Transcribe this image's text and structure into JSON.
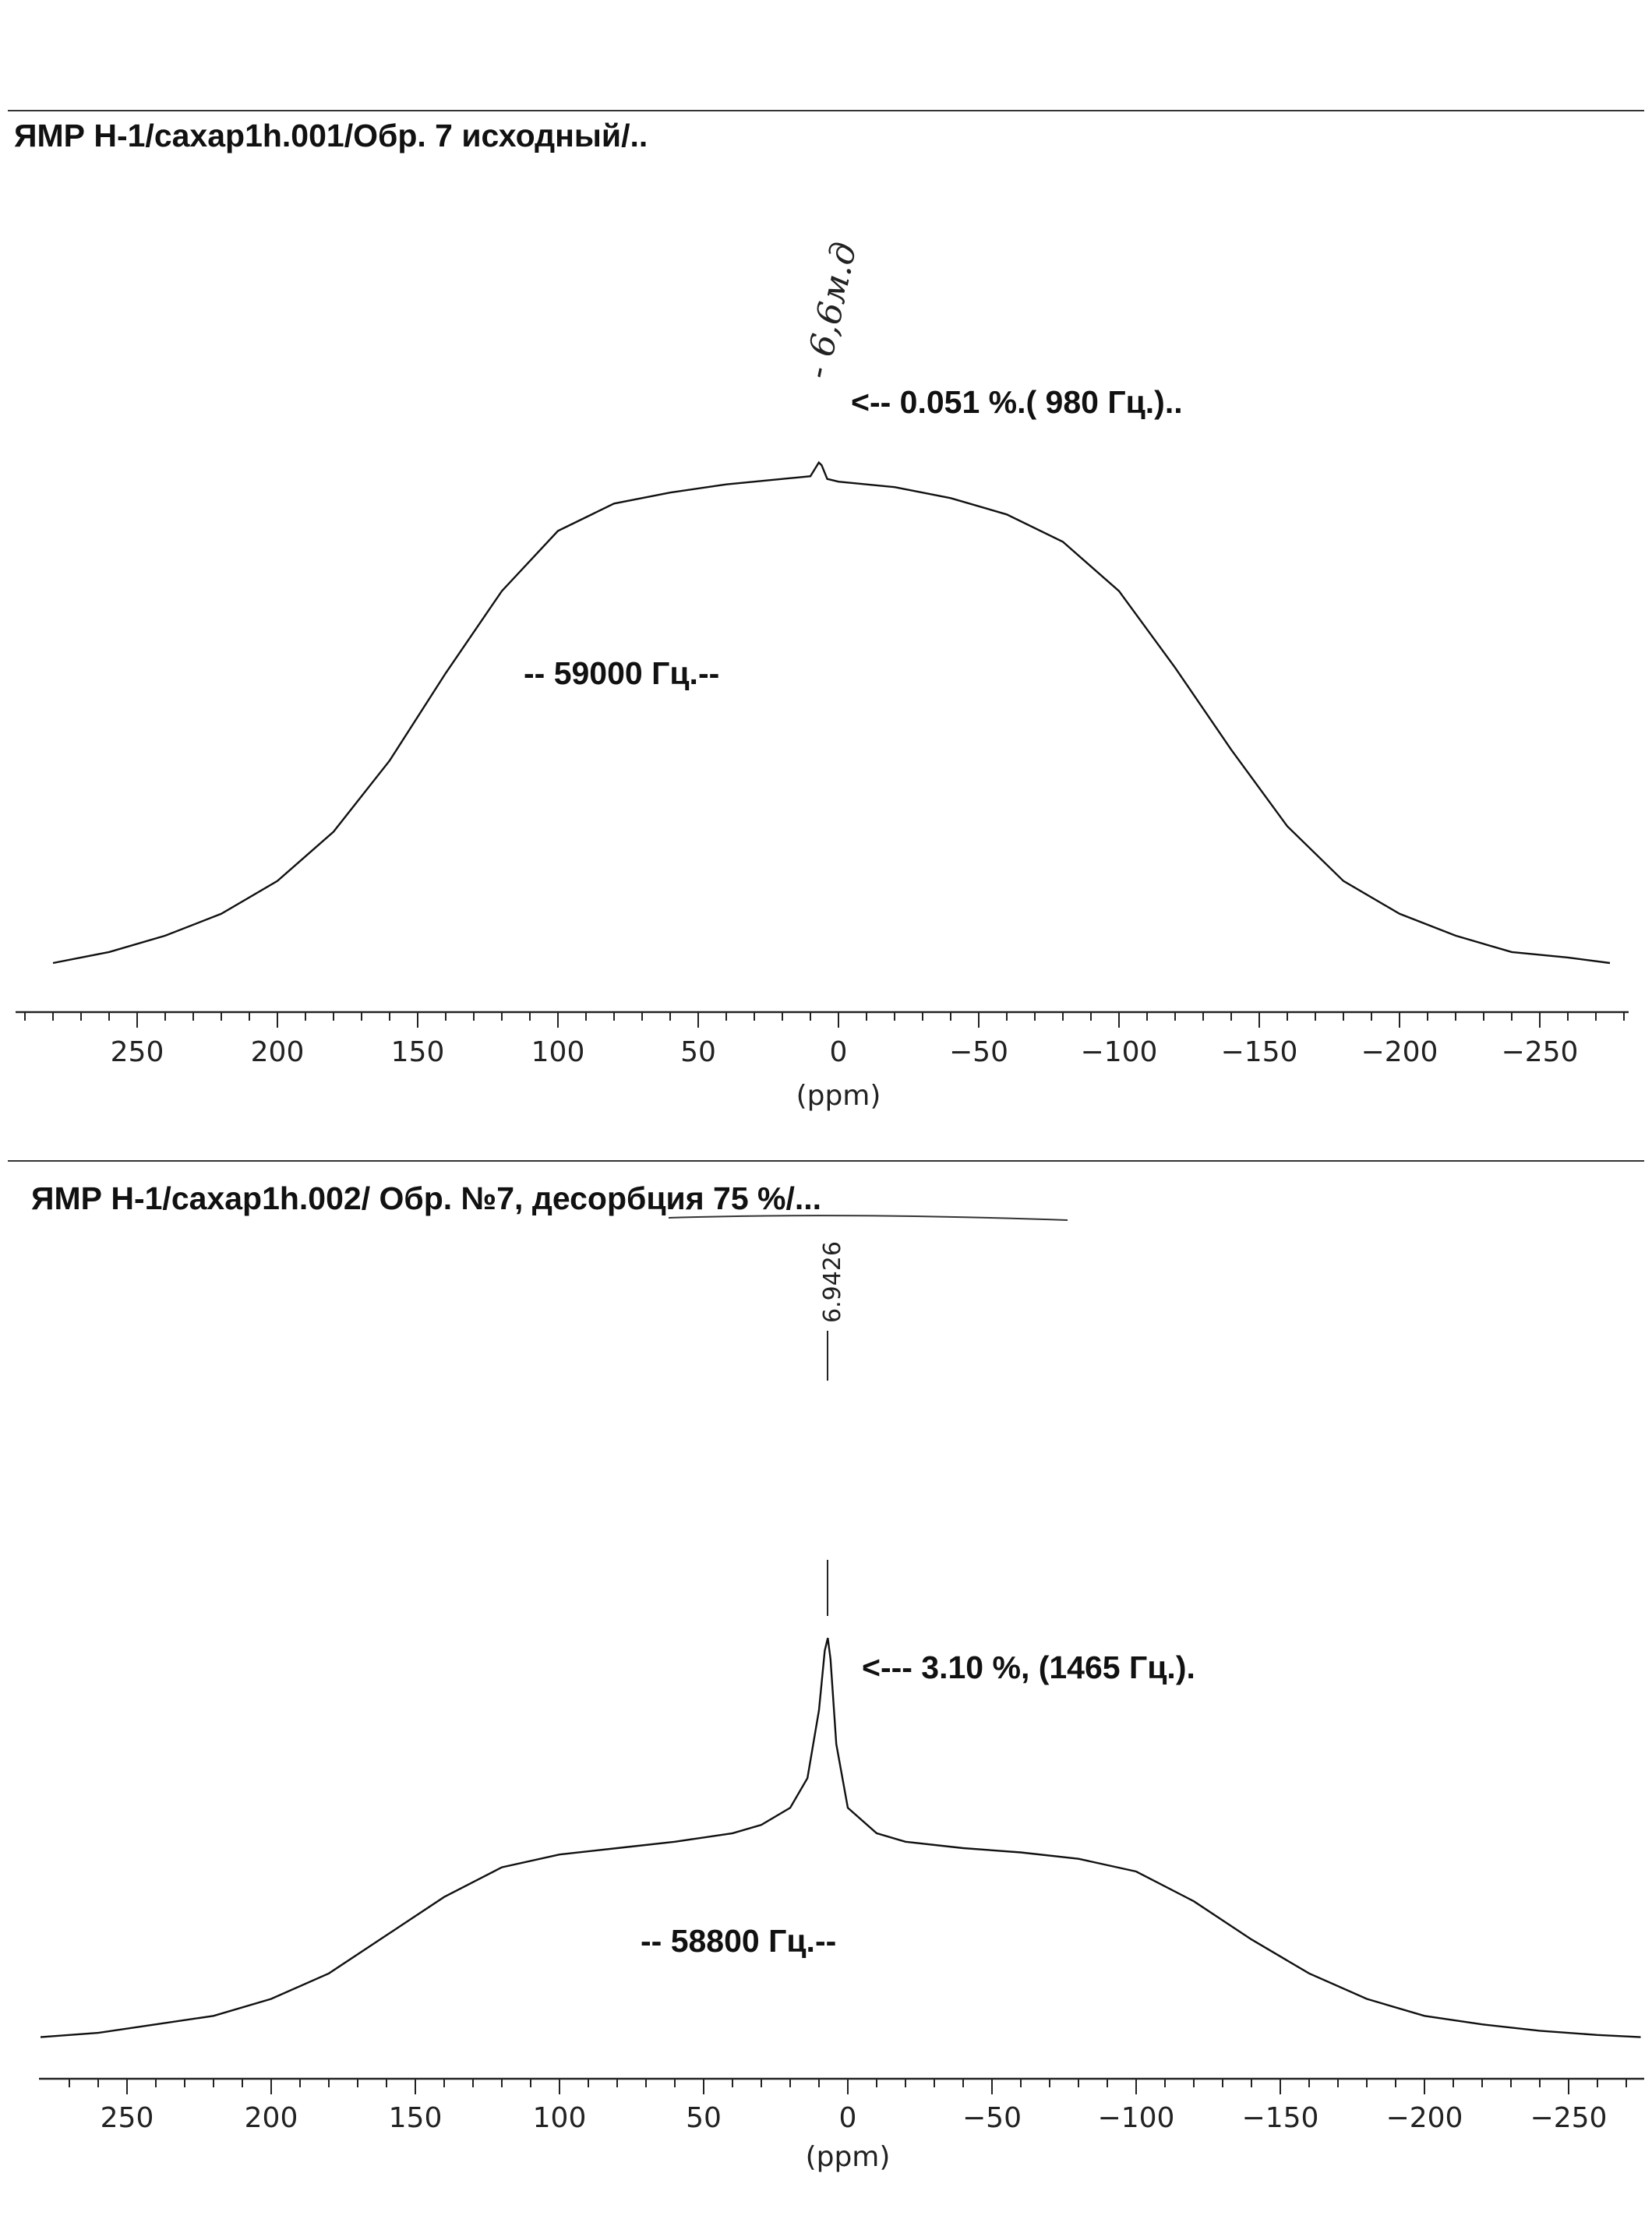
{
  "chart_data": [
    {
      "type": "line",
      "title": "ЯМР H-1/caxap1h.001/Обр. 7 исходный/..",
      "xlabel": "(ppm)",
      "ylabel": "",
      "xlim": [
        280,
        -280
      ],
      "x_reversed": true,
      "xticks": [
        250,
        200,
        150,
        100,
        50,
        0,
        -50,
        -100,
        -150,
        -200,
        -250
      ],
      "grid": false,
      "series": [
        {
          "x": [
            280,
            260,
            240,
            220,
            200,
            180,
            160,
            140,
            120,
            100,
            80,
            60,
            40,
            20,
            10,
            7,
            6,
            4,
            0,
            -20,
            -40,
            -60,
            -80,
            -100,
            -120,
            -140,
            -160,
            -180,
            -200,
            -220,
            -240,
            -260,
            -275
          ],
          "y": [
            0.02,
            0.04,
            0.07,
            0.11,
            0.17,
            0.26,
            0.39,
            0.55,
            0.7,
            0.81,
            0.86,
            0.88,
            0.895,
            0.905,
            0.91,
            0.935,
            0.93,
            0.905,
            0.9,
            0.89,
            0.87,
            0.84,
            0.79,
            0.7,
            0.56,
            0.41,
            0.27,
            0.17,
            0.11,
            0.07,
            0.04,
            0.03,
            0.02
          ]
        }
      ],
      "annotations": {
        "peak_handwritten": "- 6,6м.д",
        "peak_note": "<-- 0.051 %.( 980 Гц.)..",
        "width_note": "-- 59000 Гц.--"
      }
    },
    {
      "type": "line",
      "title": "ЯМР H-1/caxap1h.002/ Обр.  №7, десорбция 75 %/...",
      "xlabel": "(ppm)",
      "ylabel": "",
      "xlim": [
        280,
        -280
      ],
      "x_reversed": true,
      "xticks": [
        250,
        200,
        150,
        100,
        50,
        0,
        -50,
        -100,
        -150,
        -200,
        -250
      ],
      "grid": false,
      "series": [
        {
          "x": [
            280,
            260,
            240,
            220,
            200,
            180,
            160,
            140,
            120,
            100,
            80,
            60,
            40,
            30,
            20,
            14,
            10,
            8,
            6.94,
            6,
            4,
            0,
            -10,
            -20,
            -40,
            -60,
            -80,
            -100,
            -120,
            -140,
            -160,
            -180,
            -200,
            -220,
            -240,
            -260,
            -275
          ],
          "y": [
            0.01,
            0.02,
            0.04,
            0.06,
            0.1,
            0.16,
            0.25,
            0.34,
            0.41,
            0.44,
            0.455,
            0.47,
            0.49,
            0.51,
            0.55,
            0.62,
            0.78,
            0.92,
            0.95,
            0.9,
            0.7,
            0.55,
            0.49,
            0.47,
            0.455,
            0.445,
            0.43,
            0.4,
            0.33,
            0.24,
            0.16,
            0.1,
            0.06,
            0.04,
            0.025,
            0.015,
            0.01
          ]
        }
      ],
      "peak_label": "6.9426",
      "annotations": {
        "peak_note": "<--- 3.10 %,  (1465 Гц.).",
        "width_note": "-- 58800 Гц.--"
      }
    }
  ]
}
